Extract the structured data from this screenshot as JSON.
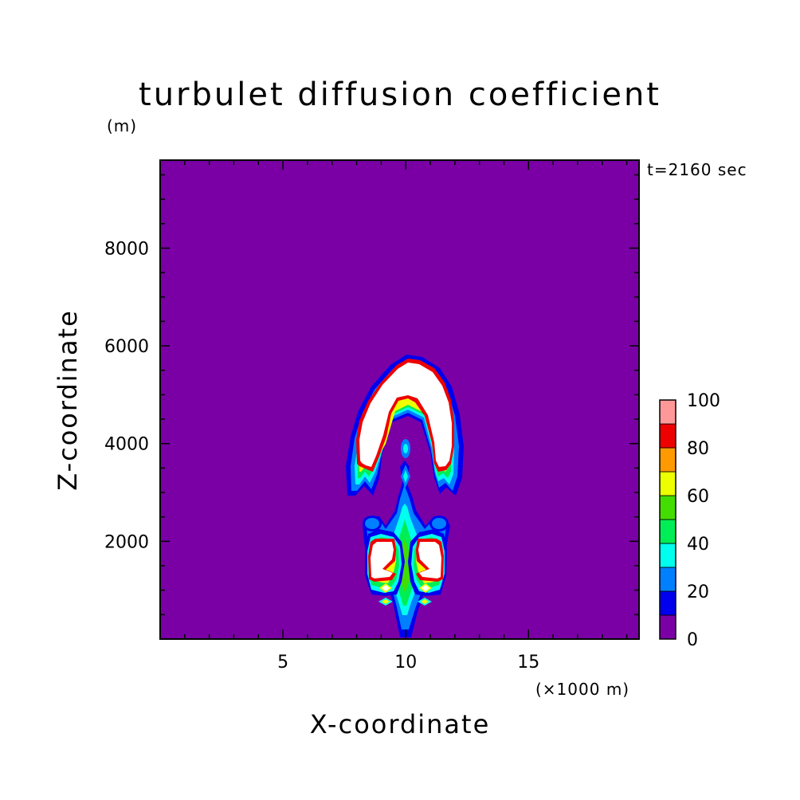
{
  "chart_data": {
    "type": "contour",
    "title": "turbulet diffusion coefficient",
    "y_unit": "(m)",
    "x_unit": "(×1000 m)",
    "time_label": "t=2160 sec",
    "xlabel": "X-coordinate",
    "ylabel": "Z-coordinate",
    "xlim": [
      0,
      19.5
    ],
    "ylim": [
      0,
      9800
    ],
    "x_ticks": [
      5,
      10,
      15
    ],
    "y_ticks": [
      2000,
      4000,
      6000,
      8000
    ],
    "x_tick_labels": [
      "5",
      "10",
      "15"
    ],
    "y_tick_labels": [
      "2000",
      "4000",
      "6000",
      "8000"
    ],
    "colorbar": {
      "levels": [
        0,
        10,
        20,
        30,
        40,
        50,
        60,
        70,
        80,
        90,
        100
      ],
      "tick_labels": [
        "0",
        "20",
        "40",
        "60",
        "80",
        "100"
      ],
      "colors": [
        "#7a00a6",
        "#0000ee",
        "#0080ff",
        "#00ffee",
        "#00ee55",
        "#44dd00",
        "#eeff00",
        "#ff9900",
        "#ee0000",
        "#ff9999"
      ]
    },
    "background_value": "0",
    "features": [
      {
        "name": "upper arch",
        "x_range": [
          8.1,
          12.4
        ],
        "z_range": [
          3100,
          5950
        ],
        "max_value": "above 100"
      },
      {
        "name": "lower left core",
        "x_range": [
          8.3,
          9.9
        ],
        "z_range": [
          900,
          2700
        ],
        "max_value": "above 100"
      },
      {
        "name": "lower right core",
        "x_range": [
          10.2,
          11.9
        ],
        "z_range": [
          900,
          2700
        ],
        "max_value": "above 100"
      },
      {
        "name": "central column",
        "x_range": [
          9.6,
          10.6
        ],
        "z_range": [
          900,
          4200
        ],
        "max_value": "70"
      }
    ]
  }
}
